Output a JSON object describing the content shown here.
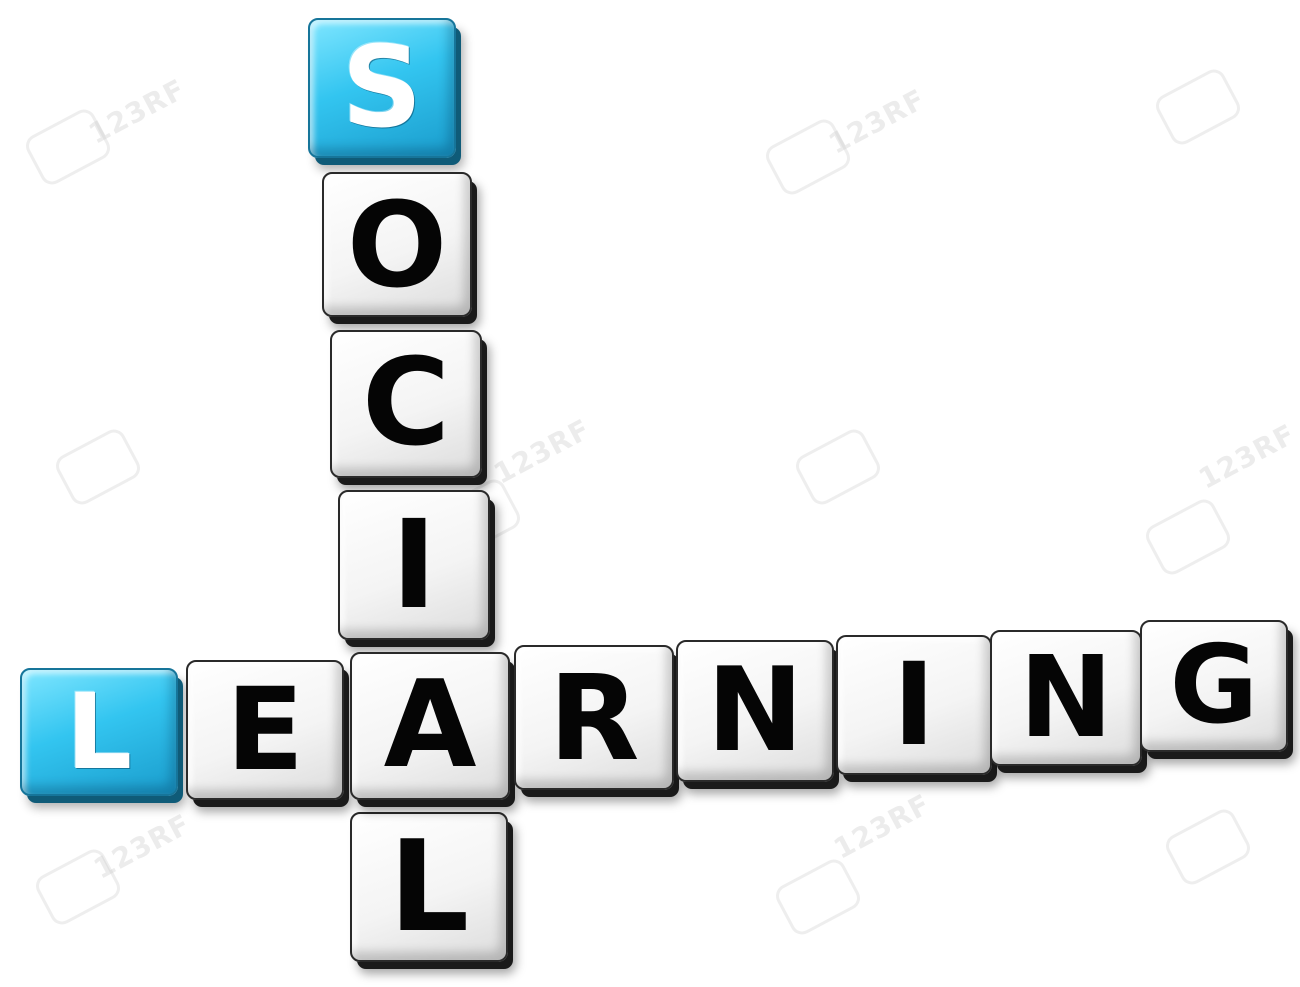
{
  "image": {
    "description_words": {
      "vertical": [
        "S",
        "O",
        "C",
        "I",
        "A",
        "L"
      ],
      "horizontal": [
        "L",
        "E",
        "A",
        "R",
        "N",
        "I",
        "N",
        "G"
      ]
    },
    "watermark_text": "123RF",
    "colors": {
      "accent_cube": "#33c5f0",
      "plain_cube": "#f4f4f4",
      "letter_dark": "#050505",
      "letter_light": "#ffffff",
      "background": "#ffffff"
    }
  }
}
